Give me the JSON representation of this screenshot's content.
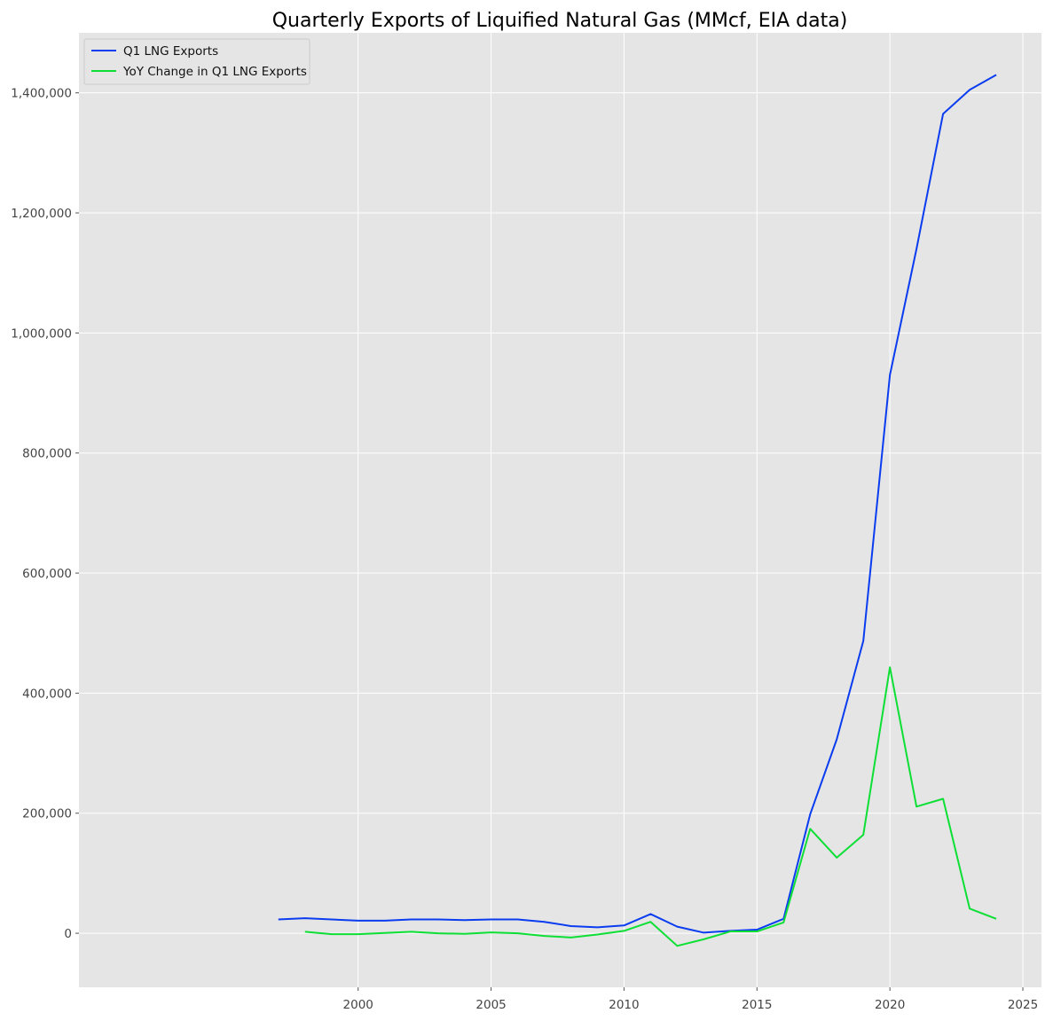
{
  "chart_data": {
    "type": "line",
    "title": "Quarterly Exports of Liquified Natural Gas (MMcf, EIA data)",
    "xlabel": "",
    "ylabel": "",
    "xlim": [
      1989.5,
      2025.7
    ],
    "ylim": [
      -90000,
      1500000
    ],
    "x_ticks": [
      2000,
      2005,
      2010,
      2015,
      2020,
      2025
    ],
    "y_ticks": [
      0,
      200000,
      400000,
      600000,
      800000,
      1000000,
      1200000,
      1400000
    ],
    "y_tick_labels": [
      "0",
      "200,000",
      "400,000",
      "600,000",
      "800,000",
      "1,000,000",
      "1,200,000",
      "1,400,000"
    ],
    "grid": true,
    "legend_position": "top-left",
    "series": [
      {
        "name": "Q1 LNG Exports",
        "color": "#0a3cf0",
        "x": [
          1997,
          1998,
          1999,
          2000,
          2001,
          2002,
          2003,
          2004,
          2005,
          2006,
          2007,
          2008,
          2009,
          2010,
          2011,
          2012,
          2013,
          2014,
          2015,
          2016,
          2017,
          2018,
          2019,
          2020,
          2021,
          2022,
          2023,
          2024
        ],
        "values": [
          23000,
          25000,
          23000,
          21000,
          21000,
          23000,
          23000,
          22000,
          23000,
          23000,
          19000,
          12000,
          10000,
          13000,
          32000,
          11000,
          1000,
          4000,
          6000,
          24000,
          198000,
          323000,
          487000,
          930000,
          1140000,
          1365000,
          1405000,
          1430000
        ]
      },
      {
        "name": "YoY Change in Q1 LNG Exports",
        "color": "#0ddf35",
        "x": [
          1998,
          1999,
          2000,
          2001,
          2002,
          2003,
          2004,
          2005,
          2006,
          2007,
          2008,
          2009,
          2010,
          2011,
          2012,
          2013,
          2014,
          2015,
          2016,
          2017,
          2018,
          2019,
          2020,
          2021,
          2022,
          2023,
          2024
        ],
        "values": [
          2500,
          -1500,
          -1500,
          500,
          2500,
          0,
          -1000,
          1500,
          0,
          -4500,
          -7000,
          -2000,
          4000,
          19000,
          -21000,
          -10000,
          3000,
          3000,
          18000,
          174000,
          126000,
          164000,
          443000,
          211000,
          224000,
          41000,
          24000
        ]
      }
    ]
  }
}
